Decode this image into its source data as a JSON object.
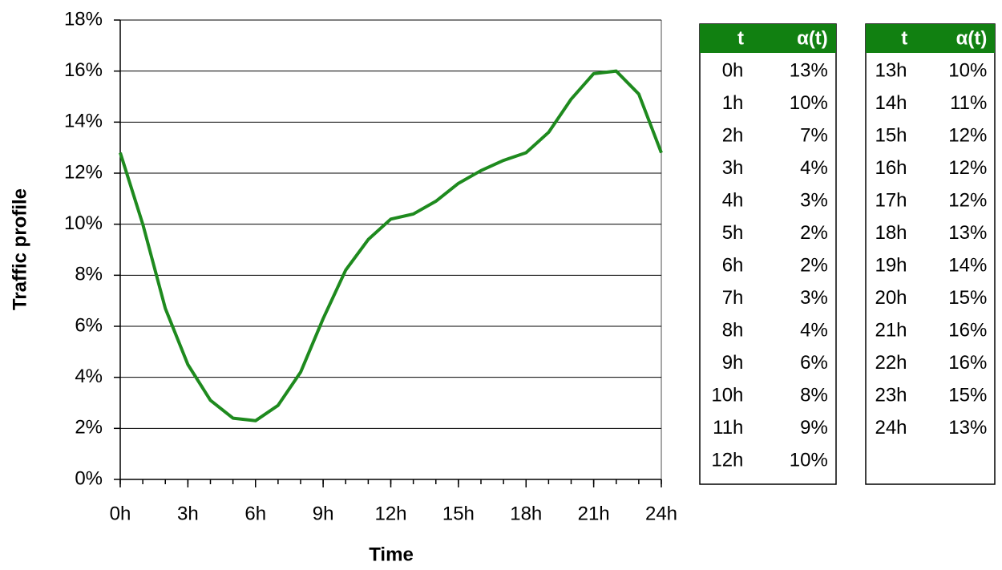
{
  "chart_data": {
    "type": "line",
    "x_label": "Time",
    "y_label": "Traffic profile",
    "x": [
      0,
      1,
      2,
      3,
      4,
      5,
      6,
      7,
      8,
      9,
      10,
      11,
      12,
      13,
      14,
      15,
      16,
      17,
      18,
      19,
      20,
      21,
      22,
      23,
      24
    ],
    "values": [
      12.8,
      10.0,
      6.7,
      4.5,
      3.1,
      2.4,
      2.3,
      2.9,
      4.2,
      6.3,
      8.2,
      9.4,
      10.2,
      10.4,
      10.9,
      11.6,
      12.1,
      12.5,
      12.8,
      13.6,
      14.9,
      15.9,
      16.0,
      15.1,
      12.8
    ],
    "color": "#1e8a1e",
    "xlim": [
      0,
      24
    ],
    "xticks": [
      {
        "value": 0,
        "label": "0h"
      },
      {
        "value": 3,
        "label": "3h"
      },
      {
        "value": 6,
        "label": "6h"
      },
      {
        "value": 9,
        "label": "9h"
      },
      {
        "value": 12,
        "label": "12h"
      },
      {
        "value": 15,
        "label": "15h"
      },
      {
        "value": 18,
        "label": "18h"
      },
      {
        "value": 21,
        "label": "21h"
      },
      {
        "value": 24,
        "label": "24h"
      }
    ],
    "ylim": [
      0,
      18
    ],
    "yticks": [
      {
        "value": 0,
        "label": "0%"
      },
      {
        "value": 2,
        "label": "2%"
      },
      {
        "value": 4,
        "label": "4%"
      },
      {
        "value": 6,
        "label": "6%"
      },
      {
        "value": 8,
        "label": "8%"
      },
      {
        "value": 10,
        "label": "10%"
      },
      {
        "value": 12,
        "label": "12%"
      },
      {
        "value": 14,
        "label": "14%"
      },
      {
        "value": 16,
        "label": "16%"
      },
      {
        "value": 18,
        "label": "18%"
      }
    ],
    "grid": true
  },
  "tables": [
    {
      "header": [
        "t",
        "α(t)"
      ],
      "rows": [
        [
          "0h",
          "13%"
        ],
        [
          "1h",
          "10%"
        ],
        [
          "2h",
          "7%"
        ],
        [
          "3h",
          "4%"
        ],
        [
          "4h",
          "3%"
        ],
        [
          "5h",
          "2%"
        ],
        [
          "6h",
          "2%"
        ],
        [
          "7h",
          "3%"
        ],
        [
          "8h",
          "4%"
        ],
        [
          "9h",
          "6%"
        ],
        [
          "10h",
          "8%"
        ],
        [
          "11h",
          "9%"
        ],
        [
          "12h",
          "10%"
        ]
      ]
    },
    {
      "header": [
        "t",
        "α(t)"
      ],
      "rows": [
        [
          "13h",
          "10%"
        ],
        [
          "14h",
          "11%"
        ],
        [
          "15h",
          "12%"
        ],
        [
          "16h",
          "12%"
        ],
        [
          "17h",
          "12%"
        ],
        [
          "18h",
          "13%"
        ],
        [
          "19h",
          "14%"
        ],
        [
          "20h",
          "15%"
        ],
        [
          "21h",
          "16%"
        ],
        [
          "22h",
          "16%"
        ],
        [
          "23h",
          "15%"
        ],
        [
          "24h",
          "13%"
        ]
      ]
    }
  ]
}
